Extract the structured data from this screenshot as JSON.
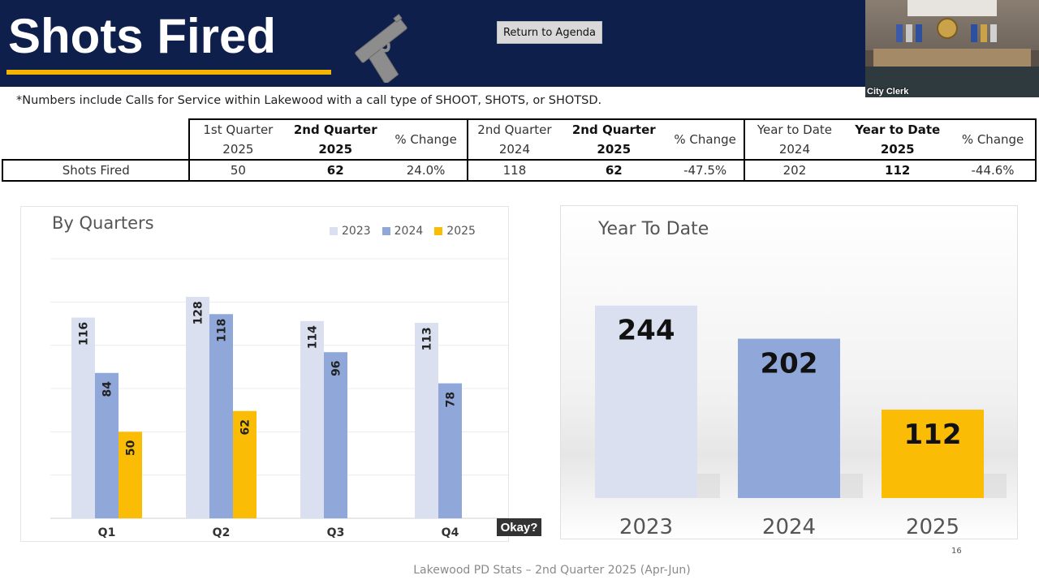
{
  "header": {
    "title": "Shots Fired",
    "return_button": "Return to Agenda",
    "colors": {
      "background": "#0f1f4b",
      "accent": "#f4b400"
    }
  },
  "video_feed": {
    "label": "City Clerk"
  },
  "note": "*Numbers include Calls for Service within Lakewood with a call type of SHOOT, SHOTS, or SHOTSD.",
  "stats_table": {
    "headers": [
      {
        "line1": "1st Quarter",
        "line2": "2025",
        "bold": false
      },
      {
        "line1": "2nd Quarter",
        "line2": "2025",
        "bold": true
      },
      {
        "line1": "% Change",
        "line2": "",
        "bold": false
      },
      {
        "line1": "2nd Quarter",
        "line2": "2024",
        "bold": false
      },
      {
        "line1": "2nd Quarter",
        "line2": "2025",
        "bold": true
      },
      {
        "line1": "% Change",
        "line2": "",
        "bold": false
      },
      {
        "line1": "Year to Date",
        "line2": "2024",
        "bold": false
      },
      {
        "line1": "Year to Date",
        "line2": "2025",
        "bold": true
      },
      {
        "line1": "% Change",
        "line2": "",
        "bold": false
      }
    ],
    "row": {
      "label": "Shots Fired",
      "values": [
        "50",
        "62",
        "24.0%",
        "118",
        "62",
        "-47.5%",
        "202",
        "112",
        "-44.6%"
      ]
    }
  },
  "chart_data": [
    {
      "type": "bar",
      "title": "By Quarters",
      "categories": [
        "Q1",
        "Q2",
        "Q3",
        "Q4"
      ],
      "series": [
        {
          "name": "2023",
          "values": [
            116,
            128,
            114,
            113
          ],
          "color": "#dae0f0"
        },
        {
          "name": "2024",
          "values": [
            84,
            118,
            96,
            78
          ],
          "color": "#8fa7d9"
        },
        {
          "name": "2025",
          "values": [
            50,
            62,
            null,
            null
          ],
          "color": "#fbbc05"
        }
      ],
      "ylim": [
        0,
        150
      ],
      "grid": true,
      "legend": "top-right"
    },
    {
      "type": "bar",
      "title": "Year To Date",
      "categories": [
        "2023",
        "2024",
        "2025"
      ],
      "values": [
        244,
        202,
        112
      ],
      "colors": [
        "#dae0f0",
        "#8fa7d9",
        "#fbbc05"
      ],
      "ylim": [
        0,
        290
      ],
      "grid": false
    }
  ],
  "overlay": {
    "caption": "Okay?"
  },
  "page_number": "16",
  "footer": "Lakewood PD Stats – 2nd Quarter 2025 (Apr-Jun)"
}
